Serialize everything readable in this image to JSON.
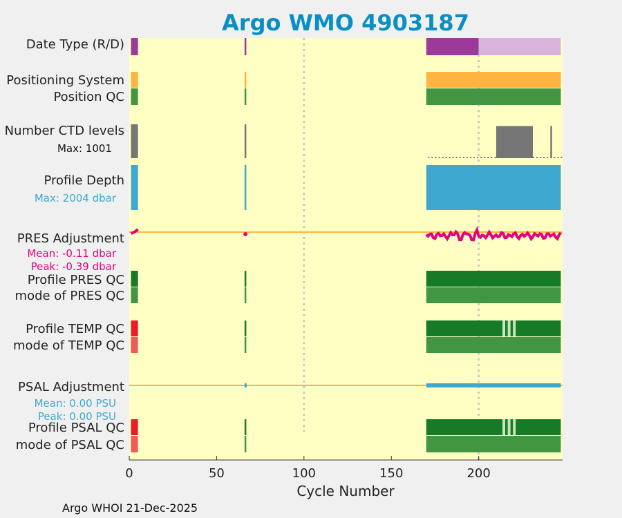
{
  "chart_data": {
    "type": "timeline",
    "title": "Argo WMO 4903187",
    "xlabel": "Cycle Number",
    "xlim": [
      0,
      248
    ],
    "xticks": [
      0,
      50,
      100,
      150,
      200
    ],
    "footer": "Argo WHOI 21-Dec-2025",
    "cycle_groups": [
      [
        1,
        5
      ],
      [
        66,
        67
      ],
      [
        170,
        247
      ]
    ],
    "dotted_cycles": [
      100,
      200
    ],
    "rows": [
      {
        "id": "date-type",
        "label": "Date Type (R/D)",
        "segments": [
          [
            1,
            5,
            "purple"
          ],
          [
            66,
            67,
            "purple"
          ],
          [
            170,
            200,
            "purple"
          ],
          [
            200,
            247,
            "lightpurple"
          ]
        ]
      },
      {
        "id": "positioning-system",
        "label": "Positioning System",
        "segments": [
          [
            1,
            5,
            "orange"
          ],
          [
            66,
            67,
            "orange"
          ],
          [
            170,
            247,
            "orange"
          ]
        ]
      },
      {
        "id": "position-qc",
        "label": "Position QC",
        "segments": [
          [
            1,
            5,
            "green"
          ],
          [
            66,
            67,
            "green"
          ],
          [
            170,
            247,
            "green"
          ]
        ]
      },
      {
        "id": "number-ctd-levels",
        "label": "Number CTD levels",
        "sublabel": "Max: 1001",
        "type": "bars"
      },
      {
        "id": "profile-depth",
        "label": "Profile Depth",
        "sublabel": "Max: 2004 dbar",
        "type": "depth"
      },
      {
        "id": "pres-adjustment",
        "label": "PRES Adjustment",
        "sublabel": "Mean: -0.11 dbar",
        "sublabel2": "Peak: -0.39 dbar",
        "type": "adjust"
      },
      {
        "id": "profile-pres-qc",
        "label": "Profile PRES QC",
        "segments": [
          [
            1,
            5,
            "darkgreen"
          ],
          [
            66,
            67,
            "darkgreen"
          ],
          [
            170,
            247,
            "darkgreen"
          ]
        ]
      },
      {
        "id": "mode-pres-qc",
        "label": "mode of PRES QC",
        "segments": [
          [
            1,
            5,
            "green"
          ],
          [
            66,
            67,
            "green"
          ],
          [
            170,
            247,
            "green"
          ]
        ]
      },
      {
        "id": "profile-temp-qc",
        "label": "Profile TEMP QC",
        "segments": [
          [
            1,
            5,
            "red"
          ],
          [
            66,
            67,
            "darkgreen"
          ],
          [
            170,
            247,
            "darkgreen"
          ]
        ]
      },
      {
        "id": "mode-temp-qc",
        "label": "mode of TEMP QC",
        "segments": [
          [
            1,
            5,
            "lightred"
          ],
          [
            66,
            67,
            "green"
          ],
          [
            170,
            247,
            "green"
          ]
        ]
      },
      {
        "id": "psal-adjustment",
        "label": "PSAL Adjustment",
        "sublabel": "Mean: 0.00 PSU",
        "sublabel2": "Peak: 0.00 PSU",
        "type": "adjust_flat"
      },
      {
        "id": "profile-psal-qc",
        "label": "Profile PSAL QC",
        "segments": [
          [
            1,
            5,
            "red"
          ],
          [
            66,
            67,
            "darkgreen"
          ],
          [
            170,
            247,
            "darkgreen"
          ]
        ]
      },
      {
        "id": "mode-psal-qc",
        "label": "mode of PSAL QC",
        "segments": [
          [
            1,
            5,
            "lightred"
          ],
          [
            66,
            67,
            "green"
          ],
          [
            170,
            247,
            "green"
          ]
        ]
      }
    ],
    "qc_stripes": [
      214,
      217,
      220
    ],
    "ctd_levels_max": 1001,
    "ctd_blocks": [
      [
        210,
        231,
        950
      ],
      [
        241,
        242,
        950
      ]
    ],
    "pres_adjust_mean": -0.11,
    "pres_adjust_peak": -0.39,
    "colors": {
      "background": "#ffffc4",
      "purple": "#9b3a9b",
      "lightpurple": "#d9b3d9",
      "orange": "#ffb43f",
      "green": "#429642",
      "darkgreen": "#167a27",
      "red": "#ee1c25",
      "lightred": "#f05a5a",
      "grey": "#767676",
      "blue": "#3fa8d0",
      "magenta": "#e6007e",
      "title": "#0a8fc2",
      "stripe": "#c6e6b8",
      "dotted": "#c8c8c8"
    }
  }
}
